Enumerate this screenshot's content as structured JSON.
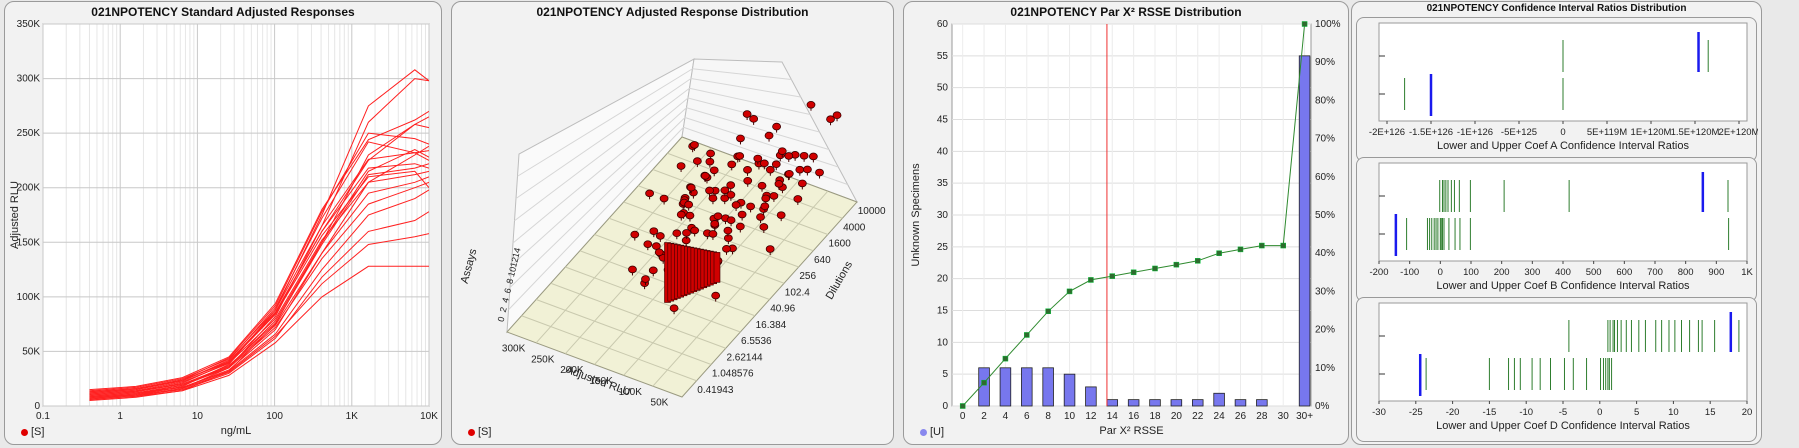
{
  "panels": {
    "p1": {
      "title": "021NPOTENCY Standard Adjusted Responses",
      "legend": "[S]",
      "legend_color": "#e00000"
    },
    "p2": {
      "title": "021NPOTENCY Adjusted Response Distribution",
      "legend": "[S]",
      "legend_color": "#e00000"
    },
    "p3": {
      "title": "021NPOTENCY Par X² RSSE Distribution",
      "legend": "[U]",
      "legend_color": "#8888ee"
    },
    "p4": {
      "title": "021NPOTENCY Confidence Interval Ratios Distribution"
    }
  },
  "chart_data": [
    {
      "type": "line",
      "title": "021NPOTENCY Standard Adjusted Responses",
      "xlabel": "ng/mL",
      "ylabel": "Adjusted RLU",
      "x_scale": "log",
      "xlim": [
        0.1,
        10000
      ],
      "ylim": [
        0,
        350000
      ],
      "x_ticks": [
        "0.1",
        "1",
        "10",
        "100",
        "1K",
        "10K"
      ],
      "y_ticks": [
        "0",
        "50K",
        "100K",
        "150K",
        "200K",
        "250K",
        "300K",
        "350K"
      ],
      "x": [
        0.4,
        1.6,
        6.4,
        25.6,
        102.4,
        409.6,
        1638.4,
        6553.6,
        10000
      ],
      "series": [
        {
          "values": [
            5000,
            8000,
            14000,
            32000,
            75000,
            150000,
            230000,
            258000,
            255000
          ]
        },
        {
          "values": [
            6000,
            9000,
            16000,
            35000,
            82000,
            165000,
            260000,
            300000,
            298000
          ]
        },
        {
          "values": [
            7000,
            10000,
            18000,
            38000,
            88000,
            175000,
            275000,
            308000,
            298000
          ]
        },
        {
          "values": [
            8000,
            11000,
            17000,
            33000,
            70000,
            140000,
            205000,
            230000,
            238000
          ]
        },
        {
          "values": [
            9000,
            12000,
            19000,
            36000,
            78000,
            150000,
            215000,
            235000,
            228000
          ]
        },
        {
          "values": [
            10000,
            13000,
            21000,
            40000,
            85000,
            160000,
            225000,
            258000,
            265000
          ]
        },
        {
          "values": [
            11000,
            14000,
            20000,
            37000,
            76000,
            148000,
            212000,
            218000,
            222000
          ]
        },
        {
          "values": [
            12000,
            15000,
            23000,
            42000,
            90000,
            172000,
            242000,
            232000,
            225000
          ]
        },
        {
          "values": [
            13000,
            16000,
            24000,
            44000,
            92000,
            178000,
            250000,
            245000,
            240000
          ]
        },
        {
          "values": [
            7000,
            10000,
            15000,
            30000,
            62000,
            118000,
            160000,
            170000,
            178000
          ]
        },
        {
          "values": [
            9000,
            12000,
            17000,
            32000,
            66000,
            125000,
            175000,
            190000,
            198000
          ]
        },
        {
          "values": [
            8000,
            11000,
            19000,
            35000,
            72000,
            135000,
            185000,
            200000,
            205000
          ]
        },
        {
          "values": [
            10000,
            13000,
            20000,
            36000,
            74000,
            140000,
            195000,
            205000,
            210000
          ]
        },
        {
          "values": [
            11000,
            14000,
            22000,
            39000,
            80000,
            152000,
            205000,
            212000,
            215000
          ]
        },
        {
          "values": [
            12000,
            15000,
            24000,
            40000,
            84000,
            156000,
            210000,
            215000,
            200000
          ]
        },
        {
          "values": [
            6000,
            9000,
            14000,
            28000,
            58000,
            100000,
            128000,
            128000,
            128000
          ]
        },
        {
          "values": [
            7000,
            10000,
            16000,
            31000,
            64000,
            112000,
            148000,
            155000,
            158000
          ]
        },
        {
          "values": [
            13000,
            16000,
            23000,
            41000,
            86000,
            160000,
            218000,
            222000,
            218000
          ]
        },
        {
          "values": [
            14000,
            17000,
            25000,
            43000,
            88000,
            165000,
            226000,
            232000,
            234000
          ]
        },
        {
          "values": [
            15000,
            18000,
            26000,
            45000,
            94000,
            180000,
            244000,
            262000,
            270000
          ]
        }
      ]
    },
    {
      "type": "scatter",
      "title": "021NPOTENCY Adjusted Response Distribution",
      "xlabel": "Adjusted RLU",
      "ylabel": "Dilutions",
      "zlabel": "Assays",
      "rlu_ticks": [
        "300K",
        "250K",
        "200K",
        "150K",
        "100K",
        "50K"
      ],
      "dilution_ticks": [
        "10000",
        "4000",
        "1600",
        "640",
        "256",
        "102.4",
        "40.96",
        "16.384",
        "6.5536",
        "2.62144",
        "1.048576",
        "0.41943"
      ],
      "assay_ticks": [
        "0",
        "2",
        "4",
        "6",
        "8",
        "10",
        "12",
        "14"
      ]
    },
    {
      "type": "bar",
      "title": "021NPOTENCY Par X² RSSE Distribution",
      "xlabel": "Par X² RSSE",
      "ylabel": "Unknown Specimens",
      "categories": [
        "0",
        "2",
        "4",
        "6",
        "8",
        "10",
        "12",
        "14",
        "16",
        "18",
        "20",
        "22",
        "24",
        "26",
        "28",
        "30",
        "30+"
      ],
      "values": [
        0,
        6,
        6,
        6,
        6,
        5,
        3,
        1,
        1,
        1,
        1,
        1,
        2,
        1,
        1,
        0,
        55
      ],
      "ylim": [
        0,
        60
      ],
      "y_ticks": [
        "0",
        "5",
        "10",
        "15",
        "20",
        "25",
        "30",
        "35",
        "40",
        "45",
        "50",
        "55",
        "60"
      ],
      "y2_ticks": [
        "0%",
        "10%",
        "20%",
        "30%",
        "40%",
        "50%",
        "60%",
        "70%",
        "80%",
        "90%",
        "100%"
      ],
      "cumulative_percent": [
        0,
        6.1,
        12.4,
        18.6,
        24.8,
        30.0,
        33.0,
        34.0,
        35.0,
        36.0,
        37.0,
        38.0,
        40.0,
        41.0,
        42.0,
        42.0,
        100
      ],
      "reference_line_x": 13.5,
      "bar_color": "#7777ee"
    },
    {
      "type": "scatter",
      "title": "Lower and Upper Coef A Confidence Interval Ratios",
      "xlabel": "Lower and Upper Coef A Confidence Interval Ratios",
      "x_ticks": [
        "-2E+126",
        "-1.5E+126",
        "-1E+126",
        "-5E+125",
        "0",
        "5E+119M",
        "1E+120M",
        "1.5E+120M",
        "2E+120M"
      ],
      "lower_ticks": [
        -1.8,
        0
      ],
      "upper_ticks": [
        0,
        1.65
      ],
      "lower_mark": -1.5,
      "upper_mark": 1.54
    },
    {
      "type": "scatter",
      "title": "Lower and Upper Coef B Confidence Interval Ratios",
      "xlabel": "Lower and Upper Coef B Confidence Interval Ratios",
      "xlim": [
        -200,
        1000
      ],
      "x_ticks": [
        "-200",
        "-100",
        "0",
        "100",
        "200",
        "300",
        "400",
        "500",
        "600",
        "700",
        "800",
        "900",
        "1K"
      ],
      "lower_ticks": [
        -110,
        -42,
        -35,
        -28,
        -20,
        -14,
        -8,
        0,
        3,
        7,
        12,
        28,
        48,
        64,
        98,
        940
      ],
      "upper_ticks": [
        -2,
        7,
        12,
        18,
        25,
        36,
        46,
        62,
        98,
        208,
        420,
        938
      ],
      "lower_mark": -145,
      "upper_mark": 856
    },
    {
      "type": "scatter",
      "title": "Lower and Upper Coef D Confidence Interval Ratios",
      "xlabel": "Lower and Upper Coef D Confidence Interval Ratios",
      "xlim": [
        -30,
        20
      ],
      "x_ticks": [
        "-30",
        "-25",
        "-20",
        "-15",
        "-10",
        "-5",
        "0",
        "5",
        "10",
        "15",
        "20"
      ],
      "lower_ticks": [
        -23.6,
        -15,
        -12.4,
        -11.6,
        -10.8,
        -9.2,
        -8.1,
        -6.7,
        -4.8,
        -3.6,
        -1.8,
        0.1,
        0.5,
        0.8,
        1.1,
        1.3,
        1.6
      ],
      "upper_ticks": [
        -4.2,
        1.1,
        1.4,
        1.8,
        2.0,
        2.4,
        2.9,
        3.6,
        4.3,
        5.3,
        6.2,
        7.6,
        8.4,
        9.4,
        10.2,
        11.1,
        12.2,
        13.4,
        13.9,
        15.6,
        18.9
      ],
      "lower_mark": -24.4,
      "upper_mark": 17.8
    }
  ]
}
